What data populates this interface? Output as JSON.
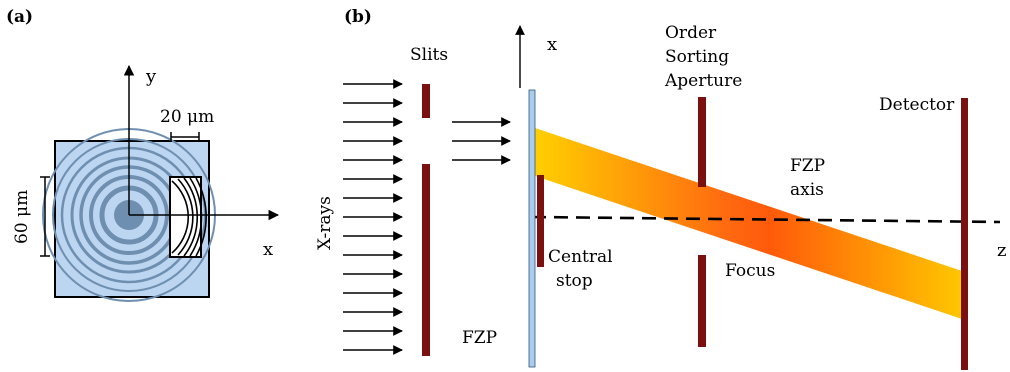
{
  "panel_a": {
    "label": "(a)",
    "axis_y": "y",
    "axis_x": "x",
    "width_label": "20 μm",
    "height_label": "60 μm"
  },
  "panel_b": {
    "label": "(b)",
    "xrays": "X-rays",
    "slits": "Slits",
    "axis_x": "x",
    "fzp": "FZP",
    "central_stop_1": "Central",
    "central_stop_2": "stop",
    "osa_1": "Order",
    "osa_2": "Sorting",
    "osa_3": "Aperture",
    "focus": "Focus",
    "fzp_axis_1": "FZP",
    "fzp_axis_2": "axis",
    "detector": "Detector",
    "axis_z": "z"
  },
  "colors": {
    "zone_plate_fill": "#bcd6f2",
    "zone_ring": "#6f8fb0",
    "slit_bar": "#7a1010",
    "fzp_substrate": "#a9cdee",
    "beam_start": "#ffd400",
    "beam_mid": "#ff5a10"
  }
}
